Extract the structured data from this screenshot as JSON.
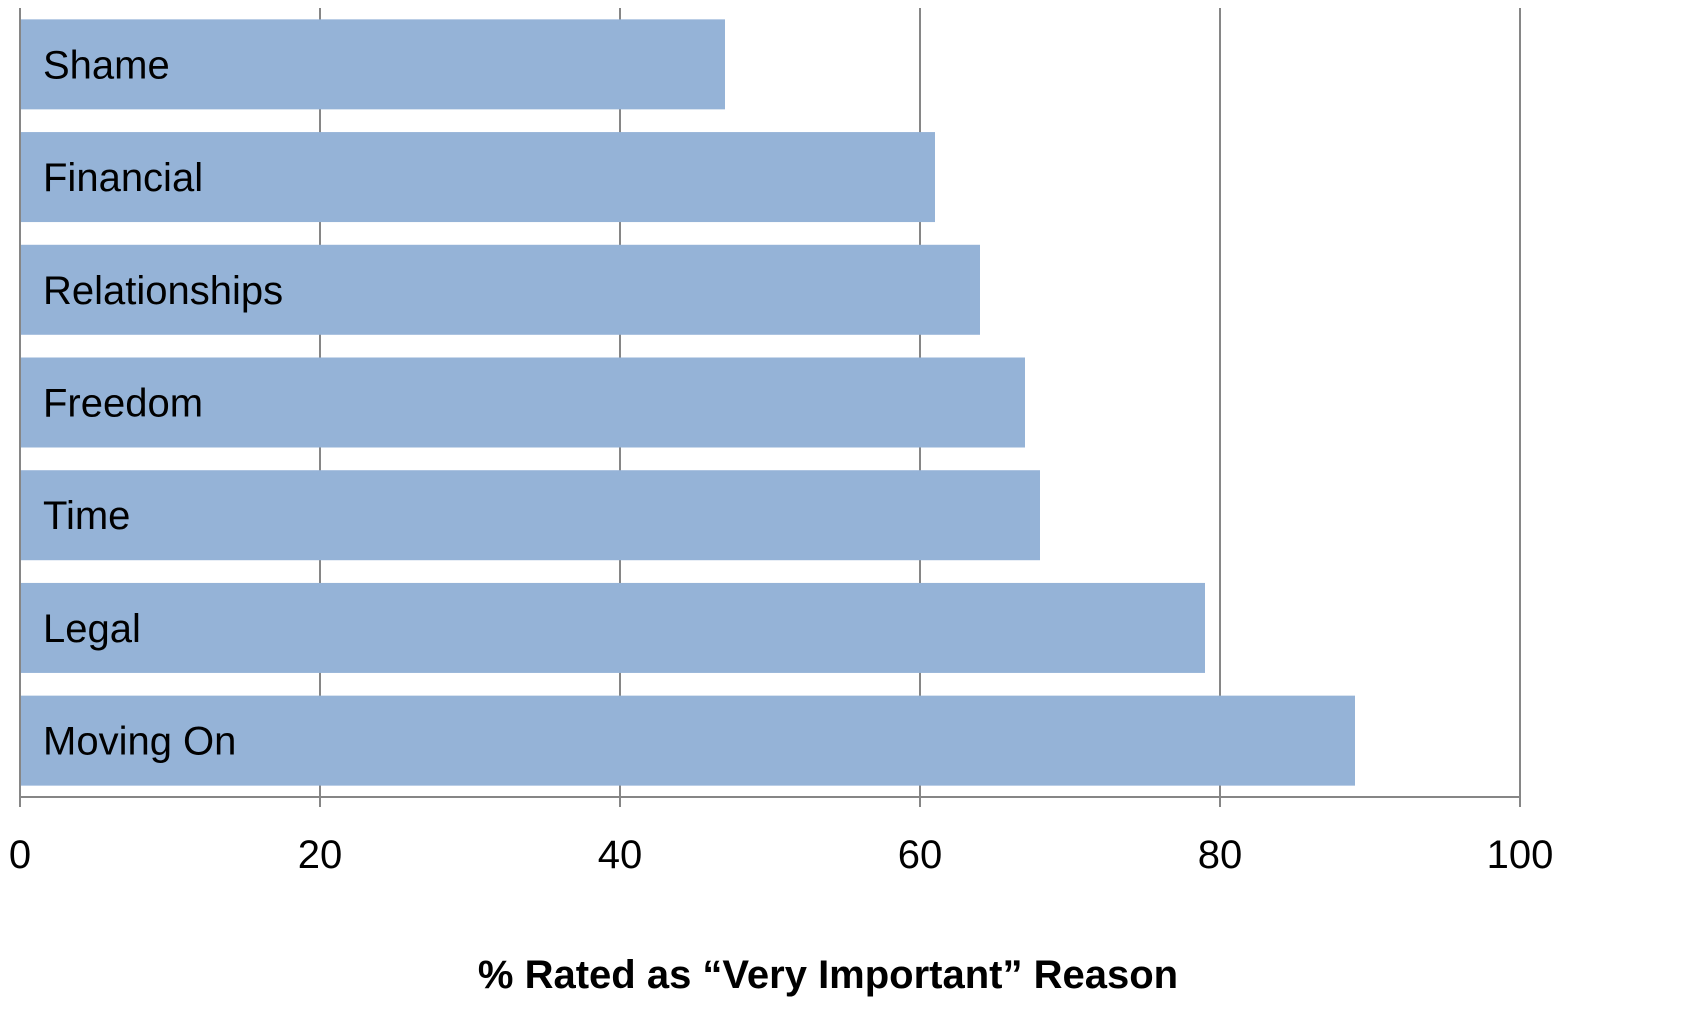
{
  "chart_data": {
    "type": "bar",
    "orientation": "horizontal",
    "categories": [
      "Shame",
      "Financial",
      "Relationships",
      "Freedom",
      "Time",
      "Legal",
      "Moving On"
    ],
    "values": [
      47,
      61,
      64,
      67,
      68,
      79,
      89
    ],
    "xlabel": "% Rated as “Very Important” Reason",
    "xlim": [
      0,
      100
    ],
    "xticks": [
      "0",
      "20",
      "40",
      "60",
      "80",
      "100"
    ],
    "grid": true,
    "category_labels_inside_bars": true,
    "colors": {
      "bar": "#95b3d7",
      "grid": "#868686",
      "axis": "#868686",
      "text": "#000000"
    }
  }
}
